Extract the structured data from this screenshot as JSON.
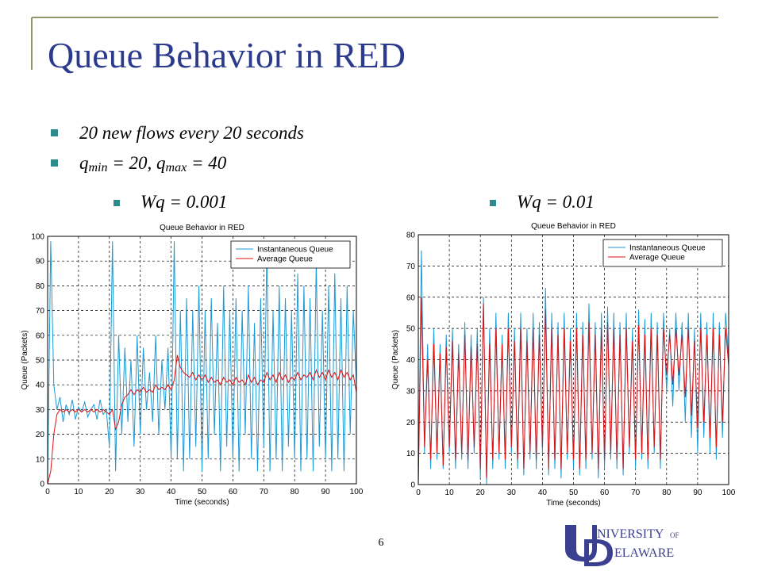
{
  "slide": {
    "title": "Queue Behavior in RED",
    "bullet1": "20 new flows every 20 seconds",
    "bullet2": {
      "q1": "q",
      "sub1": "min",
      "mid": " = 20, ",
      "q2": "q",
      "sub2": "max",
      "end": " = 40"
    },
    "sub_bullets": [
      "Wq = 0.001",
      "Wq = 0.01"
    ],
    "page_number": "6",
    "logo": {
      "line1": "NIVERSITY",
      "of": "OF",
      "line2": "ELAWARE"
    }
  },
  "chart_data": [
    {
      "type": "line",
      "title": "Queue Behavior in RED",
      "xlabel": "Time (seconds)",
      "ylabel": "Queue (Packets)",
      "legend": "upper right",
      "grid": true,
      "xlim": [
        0,
        100
      ],
      "xticks": [
        0,
        10,
        20,
        30,
        40,
        50,
        60,
        70,
        80,
        90,
        100
      ],
      "ylim": [
        0,
        100
      ],
      "yticks": [
        0,
        10,
        20,
        30,
        40,
        50,
        60,
        70,
        80,
        90,
        100
      ],
      "x": [
        0,
        1,
        2,
        3,
        4,
        5,
        6,
        7,
        8,
        9,
        10,
        11,
        12,
        13,
        14,
        15,
        16,
        17,
        18,
        19,
        20,
        21,
        22,
        23,
        24,
        25,
        26,
        27,
        28,
        29,
        30,
        31,
        32,
        33,
        34,
        35,
        36,
        37,
        38,
        39,
        40,
        41,
        42,
        43,
        44,
        45,
        46,
        47,
        48,
        49,
        50,
        51,
        52,
        53,
        54,
        55,
        56,
        57,
        58,
        59,
        60,
        61,
        62,
        63,
        64,
        65,
        66,
        67,
        68,
        69,
        70,
        71,
        72,
        73,
        74,
        75,
        76,
        77,
        78,
        79,
        80,
        81,
        82,
        83,
        84,
        85,
        86,
        87,
        88,
        89,
        90,
        91,
        92,
        93,
        94,
        95,
        96,
        97,
        98,
        99,
        100
      ],
      "series": [
        {
          "name": "Instantaneous Queue",
          "color": "#1a9ad6",
          "values": [
            0,
            98,
            40,
            30,
            35,
            25,
            32,
            28,
            34,
            26,
            31,
            29,
            33,
            27,
            30,
            32,
            26,
            34,
            28,
            30,
            15,
            98,
            5,
            60,
            20,
            55,
            25,
            50,
            15,
            60,
            20,
            55,
            30,
            45,
            25,
            60,
            20,
            50,
            30,
            55,
            10,
            98,
            10,
            70,
            5,
            75,
            10,
            70,
            15,
            80,
            5,
            70,
            10,
            75,
            20,
            65,
            5,
            80,
            15,
            70,
            10,
            75,
            5,
            70,
            20,
            80,
            10,
            65,
            5,
            75,
            15,
            95,
            5,
            70,
            10,
            80,
            5,
            75,
            15,
            70,
            10,
            85,
            5,
            80,
            10,
            75,
            5,
            90,
            15,
            70,
            10,
            80,
            5,
            85,
            10,
            75,
            5,
            80,
            20,
            70,
            40
          ]
        },
        {
          "name": "Average Queue",
          "color": "#e01010",
          "values": [
            0,
            5,
            20,
            28,
            30,
            29,
            30,
            29,
            30,
            29,
            30,
            29,
            30,
            29,
            30,
            29,
            30,
            29,
            30,
            29,
            28,
            30,
            22,
            25,
            32,
            35,
            36,
            38,
            36,
            38,
            37,
            39,
            37,
            38,
            37,
            40,
            38,
            39,
            38,
            40,
            38,
            42,
            52,
            47,
            45,
            44,
            43,
            45,
            42,
            44,
            42,
            44,
            41,
            43,
            41,
            42,
            40,
            43,
            41,
            42,
            40,
            43,
            41,
            42,
            40,
            44,
            41,
            43,
            40,
            42,
            41,
            45,
            42,
            44,
            41,
            45,
            42,
            44,
            41,
            43,
            42,
            45,
            42,
            44,
            43,
            45,
            42,
            46,
            43,
            45,
            42,
            46,
            43,
            45,
            42,
            46,
            43,
            45,
            42,
            44,
            37
          ]
        }
      ]
    },
    {
      "type": "line",
      "title": "Queue Behavior in RED",
      "xlabel": "Time (seconds)",
      "ylabel": "Queue (Packets)",
      "legend": "upper right",
      "grid": true,
      "xlim": [
        0,
        100
      ],
      "xticks": [
        0,
        10,
        20,
        30,
        40,
        50,
        60,
        70,
        80,
        90,
        100
      ],
      "ylim": [
        0,
        80
      ],
      "yticks": [
        0,
        10,
        20,
        30,
        40,
        50,
        60,
        70,
        80
      ],
      "x": [
        0,
        1,
        2,
        3,
        4,
        5,
        6,
        7,
        8,
        9,
        10,
        11,
        12,
        13,
        14,
        15,
        16,
        17,
        18,
        19,
        20,
        21,
        22,
        23,
        24,
        25,
        26,
        27,
        28,
        29,
        30,
        31,
        32,
        33,
        34,
        35,
        36,
        37,
        38,
        39,
        40,
        41,
        42,
        43,
        44,
        45,
        46,
        47,
        48,
        49,
        50,
        51,
        52,
        53,
        54,
        55,
        56,
        57,
        58,
        59,
        60,
        61,
        62,
        63,
        64,
        65,
        66,
        67,
        68,
        69,
        70,
        71,
        72,
        73,
        74,
        75,
        76,
        77,
        78,
        79,
        80,
        81,
        82,
        83,
        84,
        85,
        86,
        87,
        88,
        89,
        90,
        91,
        92,
        93,
        94,
        95,
        96,
        97,
        98,
        99,
        100
      ],
      "series": [
        {
          "name": "Instantaneous Queue",
          "color": "#1a9ad6",
          "values": [
            0,
            75,
            10,
            45,
            5,
            50,
            8,
            45,
            5,
            48,
            10,
            50,
            5,
            45,
            8,
            52,
            5,
            48,
            10,
            50,
            2,
            60,
            0,
            50,
            5,
            55,
            8,
            48,
            5,
            55,
            10,
            50,
            5,
            55,
            3,
            50,
            8,
            55,
            5,
            52,
            10,
            63,
            3,
            55,
            5,
            52,
            2,
            55,
            8,
            50,
            5,
            55,
            3,
            52,
            5,
            58,
            8,
            52,
            2,
            55,
            5,
            57,
            8,
            55,
            5,
            52,
            3,
            55,
            10,
            50,
            5,
            56,
            8,
            53,
            5,
            55,
            10,
            52,
            5,
            55,
            30,
            50,
            25,
            55,
            30,
            52,
            20,
            55,
            15,
            50,
            10,
            55,
            15,
            52,
            10,
            55,
            8,
            52,
            15,
            55,
            40
          ]
        },
        {
          "name": "Average Queue",
          "color": "#e01010",
          "values": [
            0,
            60,
            12,
            40,
            8,
            45,
            10,
            42,
            6,
            44,
            12,
            46,
            8,
            42,
            10,
            48,
            8,
            44,
            12,
            45,
            5,
            58,
            2,
            45,
            8,
            50,
            10,
            45,
            8,
            50,
            12,
            46,
            8,
            50,
            5,
            46,
            10,
            50,
            8,
            48,
            12,
            56,
            5,
            50,
            8,
            48,
            5,
            50,
            10,
            46,
            8,
            50,
            5,
            48,
            8,
            52,
            10,
            48,
            5,
            50,
            8,
            52,
            10,
            50,
            8,
            48,
            5,
            50,
            12,
            46,
            8,
            51,
            10,
            48,
            8,
            50,
            12,
            48,
            8,
            50,
            35,
            48,
            32,
            50,
            35,
            48,
            28,
            50,
            22,
            46,
            18,
            50,
            20,
            48,
            15,
            50,
            12,
            48,
            20,
            50,
            38
          ]
        }
      ]
    }
  ]
}
